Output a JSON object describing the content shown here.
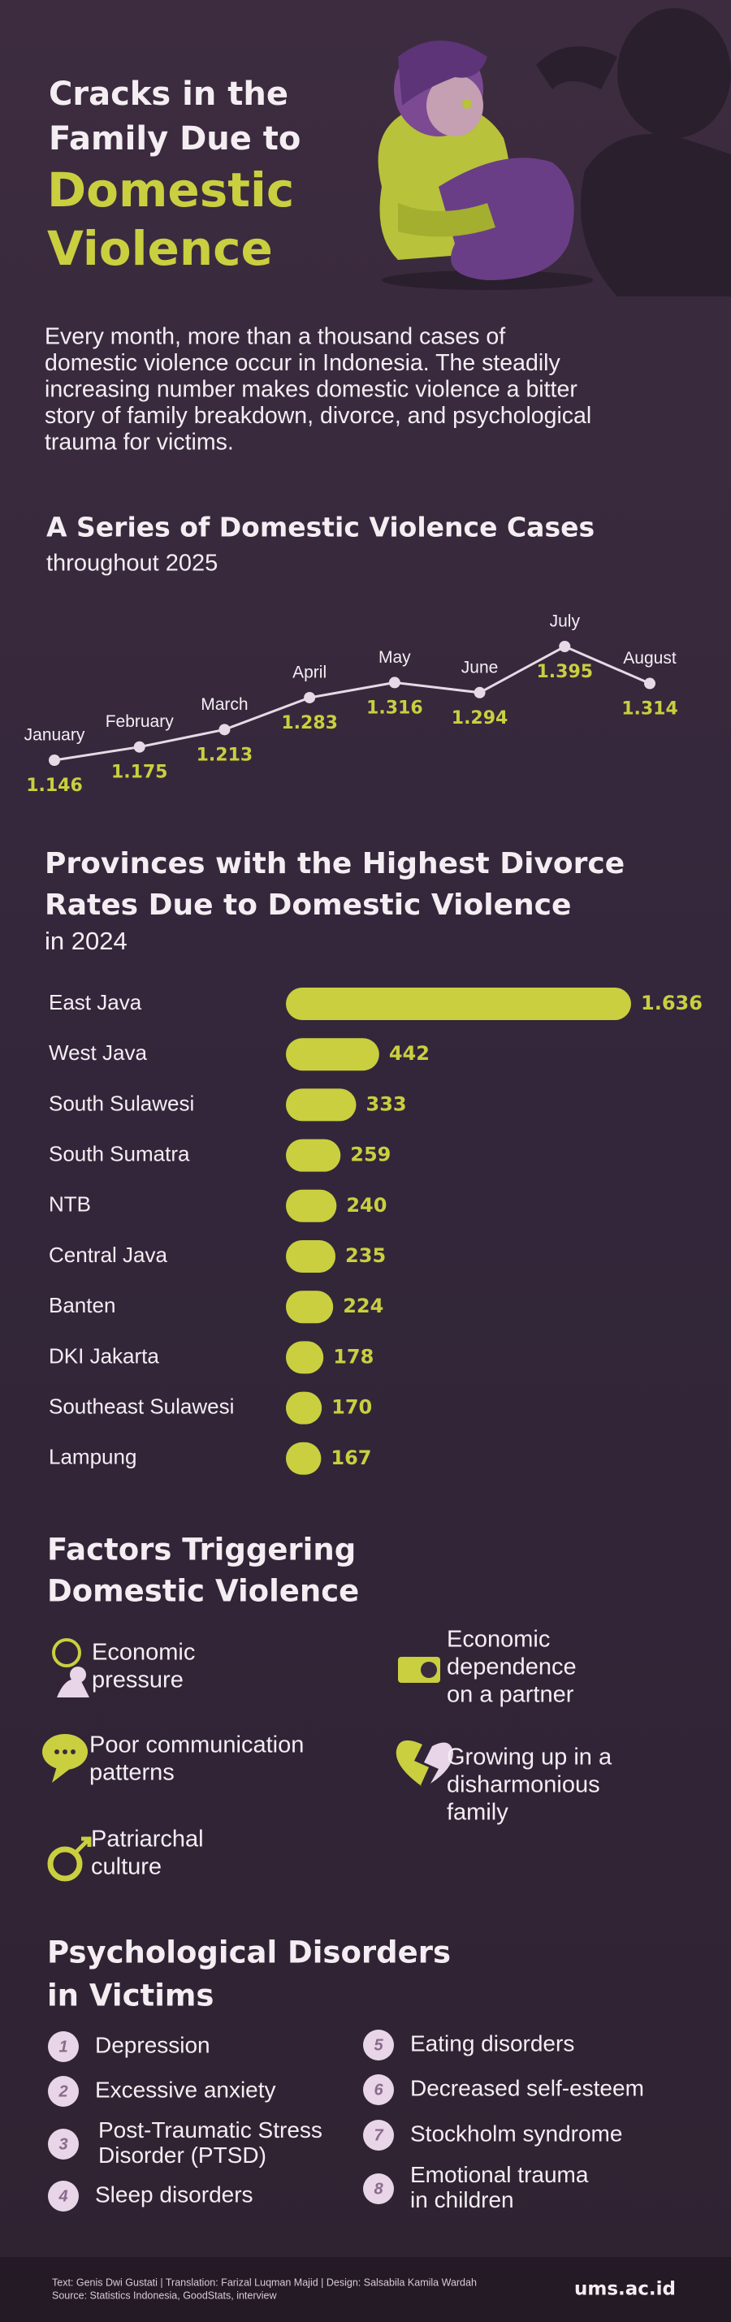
{
  "header": {
    "title_lines": [
      "Cracks in the",
      "Family Due to"
    ],
    "highlight_lines": [
      "Domestic",
      "Violence"
    ],
    "intro_lines": [
      "Every month, more than a thousand cases of",
      "domestic violence occur in Indonesia. The steadily",
      "increasing number makes domestic violence a bitter",
      "story of family breakdown, divorce, and psychological",
      "trauma for victims."
    ]
  },
  "chart_data": [
    {
      "type": "line",
      "title": "A Series of Domestic Violence Cases",
      "subtitle": "throughout 2025",
      "categories": [
        "January",
        "February",
        "March",
        "April",
        "May",
        "June",
        "July",
        "August"
      ],
      "values": [
        1146,
        1175,
        1213,
        1283,
        1316,
        1294,
        1395,
        1314
      ],
      "value_labels": [
        "1.146",
        "1.175",
        "1.213",
        "1.283",
        "1.316",
        "1.294",
        "1.395",
        "1.314"
      ],
      "color": "#c9cf3f",
      "line_color": "#e8d9e6"
    },
    {
      "type": "bar",
      "title": [
        "Provinces with the Highest Divorce",
        "Rates Due to Domestic Violence"
      ],
      "subtitle": "in 2024",
      "categories": [
        "East Java",
        "West Java",
        "South Sulawesi",
        "South Sumatra",
        "NTB",
        "Central Java",
        "Banten",
        "DKI Jakarta",
        "Southeast Sulawesi",
        "Lampung"
      ],
      "values": [
        1636,
        442,
        333,
        259,
        240,
        235,
        224,
        178,
        170,
        167
      ],
      "value_labels": [
        "1.636",
        "442",
        "333",
        "259",
        "240",
        "235",
        "224",
        "178",
        "170",
        "167"
      ],
      "color": "#c9cf3f"
    }
  ],
  "factors": {
    "title": [
      "Factors Triggering",
      "Domestic Violence"
    ],
    "items": [
      {
        "lines": [
          "Economic",
          "pressure"
        ]
      },
      {
        "lines": [
          "Economic",
          "dependence",
          "on a partner"
        ]
      },
      {
        "lines": [
          "Poor communication",
          "patterns"
        ]
      },
      {
        "lines": [
          "Growing up in a",
          "disharmonious",
          "family"
        ]
      },
      {
        "lines": [
          "Patriarchal",
          "culture"
        ]
      }
    ]
  },
  "disorders": {
    "title": [
      "Psychological Disorders",
      "in Victims"
    ],
    "items": [
      {
        "number": 1,
        "lines": [
          "Depression"
        ]
      },
      {
        "number": 2,
        "lines": [
          "Excessive anxiety"
        ]
      },
      {
        "number": 3,
        "lines": [
          "Post-Traumatic Stress",
          "Disorder (PTSD)"
        ]
      },
      {
        "number": 4,
        "lines": [
          "Sleep disorders"
        ]
      },
      {
        "number": 5,
        "lines": [
          "Eating disorders"
        ]
      },
      {
        "number": 6,
        "lines": [
          "Decreased self-esteem"
        ]
      },
      {
        "number": 7,
        "lines": [
          "Stockholm syndrome"
        ]
      },
      {
        "number": 8,
        "lines": [
          "Emotional trauma",
          "in children"
        ]
      }
    ]
  },
  "footer": {
    "credits": "Text: Genis Dwi Gustati | Translation: Farizal Luqman Majid | Design: Salsabila Kamila Wardah",
    "sources": "Source: Statistics Indonesia, GoodStats, interview",
    "site": "ums.ac.id"
  }
}
